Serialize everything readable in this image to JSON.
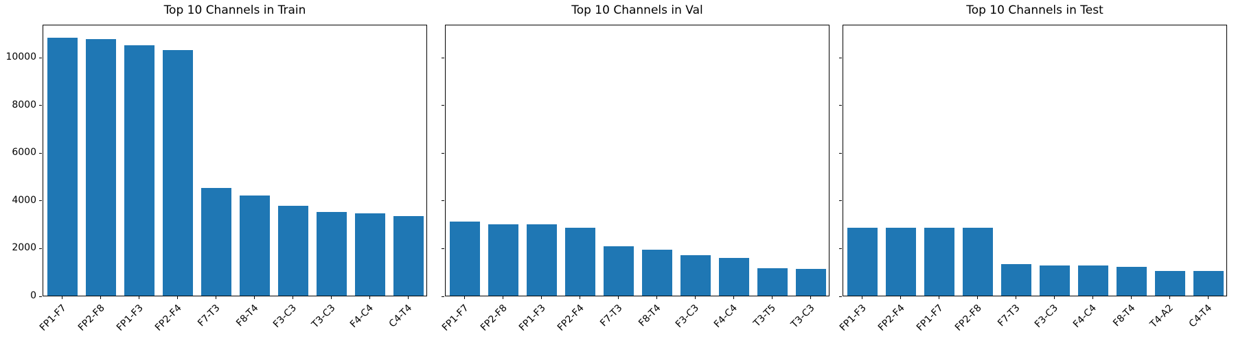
{
  "figure": {
    "background": "#ffffff",
    "bar_color": "#1f77b4",
    "axis_color": "#000000",
    "y_ticks": [
      0,
      2000,
      4000,
      6000,
      8000,
      10000
    ],
    "y_max": 11390
  },
  "chart_data": [
    {
      "type": "bar",
      "title": "Top 10 Channels in Train",
      "categories": [
        "FP1-F7",
        "FP2-F8",
        "FP1-F3",
        "FP2-F4",
        "F7-T3",
        "F8-T4",
        "F3-C3",
        "T3-C3",
        "F4-C4",
        "C4-T4"
      ],
      "values": [
        10820,
        10750,
        10490,
        10300,
        4530,
        4190,
        3760,
        3520,
        3440,
        3330
      ],
      "xlabel": "",
      "ylabel": "",
      "ylim": [
        0,
        11390
      ],
      "grid": false,
      "legend": false,
      "show_y_tick_labels": true
    },
    {
      "type": "bar",
      "title": "Top 10 Channels in Val",
      "categories": [
        "FP1-F7",
        "FP2-F8",
        "FP1-F3",
        "FP2-F4",
        "F7-T3",
        "F8-T4",
        "F3-C3",
        "F4-C4",
        "T3-T5",
        "T3-C3"
      ],
      "values": [
        3120,
        3000,
        3000,
        2840,
        2070,
        1940,
        1710,
        1590,
        1160,
        1110
      ],
      "xlabel": "",
      "ylabel": "",
      "ylim": [
        0,
        11390
      ],
      "grid": false,
      "legend": false,
      "show_y_tick_labels": false
    },
    {
      "type": "bar",
      "title": "Top 10 Channels in Test",
      "categories": [
        "FP1-F3",
        "FP2-F4",
        "FP1-F7",
        "FP2-F8",
        "F7-T3",
        "F3-C3",
        "F4-C4",
        "F8-T4",
        "T4-A2",
        "C4-T4"
      ],
      "values": [
        2860,
        2860,
        2860,
        2860,
        1320,
        1270,
        1270,
        1220,
        1050,
        1030
      ],
      "xlabel": "",
      "ylabel": "",
      "ylim": [
        0,
        11390
      ],
      "grid": false,
      "legend": false,
      "show_y_tick_labels": false
    }
  ]
}
